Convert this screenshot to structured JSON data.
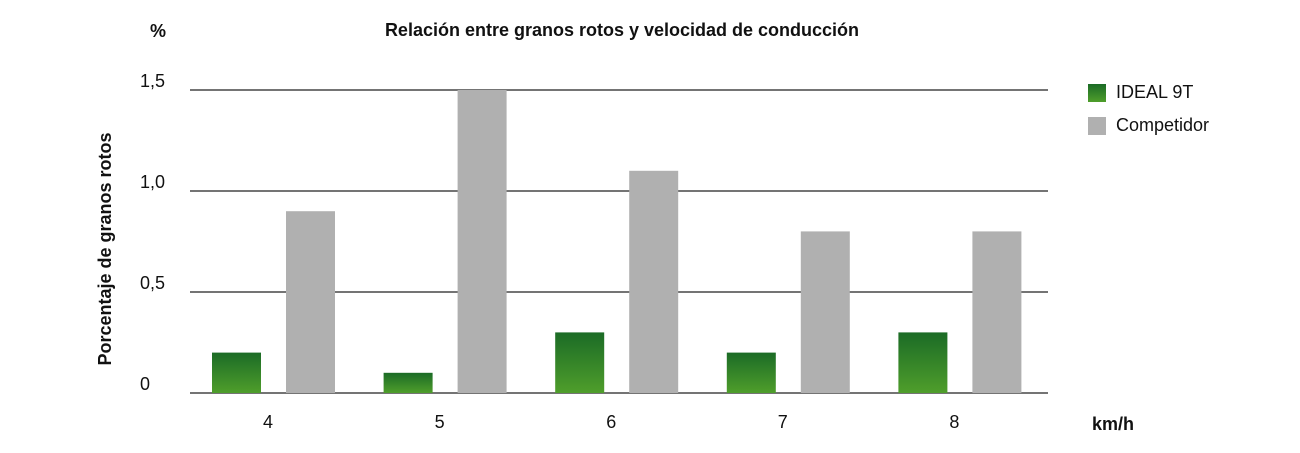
{
  "chart_data": {
    "type": "bar",
    "title": "Relación entre granos rotos y velocidad de conducción",
    "y_unit": "%",
    "x_unit": "km/h",
    "y_label": "Porcentaje de granos rotos",
    "categories": [
      "4",
      "5",
      "6",
      "7",
      "8"
    ],
    "series": [
      {
        "name": "IDEAL 9T",
        "color": "#1b6b26",
        "values": [
          0.2,
          0.1,
          0.3,
          0.2,
          0.3
        ]
      },
      {
        "name": "Competidor",
        "color": "#b0b0b0",
        "values": [
          0.9,
          1.5,
          1.1,
          0.8,
          0.8
        ]
      }
    ],
    "ylim": [
      0,
      1.5
    ],
    "yticks": [
      0,
      {
        "value": 0.5,
        "label": "0,5"
      },
      {
        "value": 1.0,
        "label": "1,0"
      },
      {
        "value": 1.5,
        "label": "1,5"
      }
    ],
    "grid": true,
    "legend": "right"
  }
}
